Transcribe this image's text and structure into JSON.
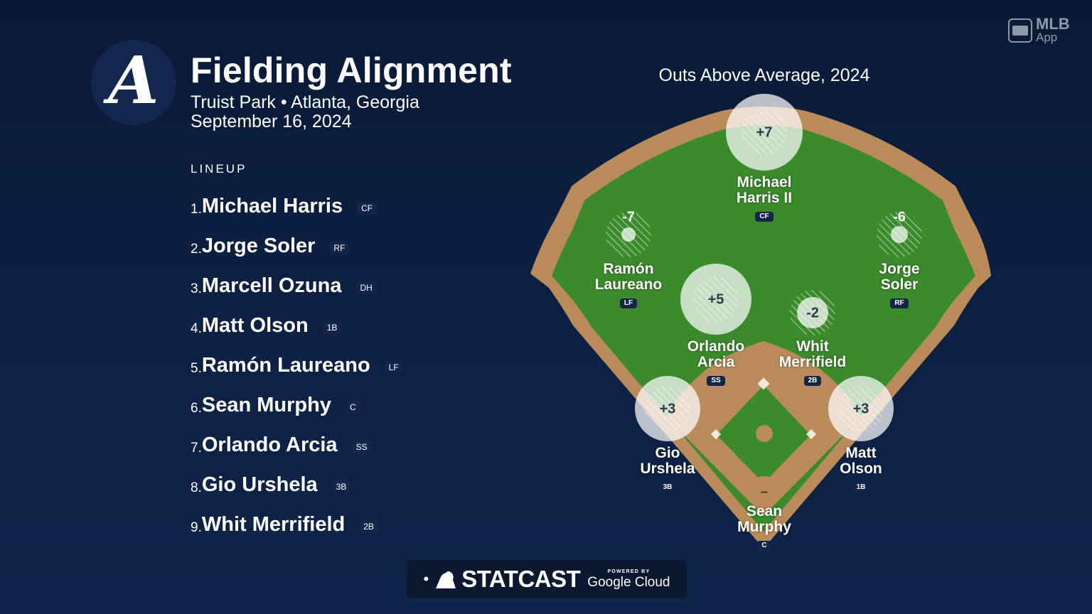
{
  "header": {
    "logo_letter": "A",
    "title": "Fielding Alignment",
    "venue": "Truist Park • Atlanta, Georgia",
    "date": "September 16, 2024"
  },
  "lineup": {
    "heading": "LINEUP",
    "items": [
      {
        "num": "1.",
        "name": "Michael Harris",
        "pos": "CF"
      },
      {
        "num": "2.",
        "name": "Jorge Soler",
        "pos": "RF"
      },
      {
        "num": "3.",
        "name": "Marcell Ozuna",
        "pos": "DH"
      },
      {
        "num": "4.",
        "name": "Matt Olson",
        "pos": "1B"
      },
      {
        "num": "5.",
        "name": "Ramón Laureano",
        "pos": "LF"
      },
      {
        "num": "6.",
        "name": "Sean Murphy",
        "pos": "C"
      },
      {
        "num": "7.",
        "name": "Orlando Arcia",
        "pos": "SS"
      },
      {
        "num": "8.",
        "name": "Gio Urshela",
        "pos": "3B"
      },
      {
        "num": "9.",
        "name": "Whit Merrifield",
        "pos": "2B"
      }
    ]
  },
  "field": {
    "title": "Outs Above Average, 2024",
    "players": [
      {
        "name": "Michael\nHarris II",
        "pos": "CF",
        "oaa": "+7"
      },
      {
        "name": "Ramón\nLaureano",
        "pos": "LF",
        "oaa": "-7"
      },
      {
        "name": "Jorge\nSoler",
        "pos": "RF",
        "oaa": "-6"
      },
      {
        "name": "Orlando\nArcia",
        "pos": "SS",
        "oaa": "+5"
      },
      {
        "name": "Whit\nMerrifield",
        "pos": "2B",
        "oaa": "-2"
      },
      {
        "name": "Gio\nUrshela",
        "pos": "3B",
        "oaa": "+3"
      },
      {
        "name": "Matt\nOlson",
        "pos": "1B",
        "oaa": "+3"
      },
      {
        "name": "Sean\nMurphy",
        "pos": "C",
        "oaa": "–"
      }
    ]
  },
  "branding": {
    "app_line1": "MLB",
    "app_line2": "App",
    "statcast_word": "STATCAST",
    "powered_by": "POWERED BY",
    "google_cloud": "Google Cloud"
  },
  "colors": {
    "background": "#0d2144",
    "grass": "#3b8a2c",
    "dirt": "#b98a5a",
    "logo_circle": "#13274f"
  }
}
